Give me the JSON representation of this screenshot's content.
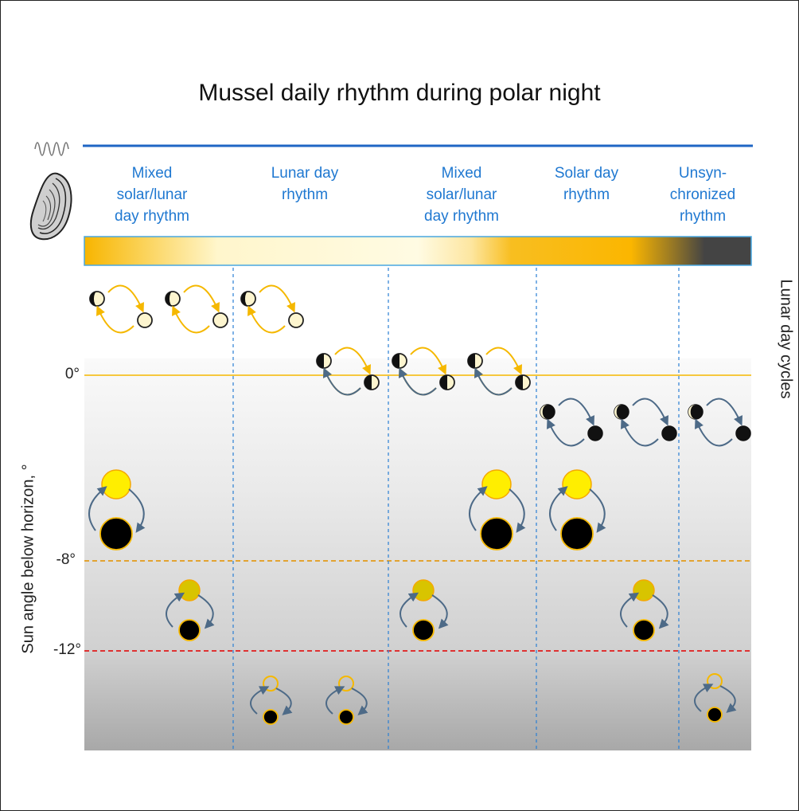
{
  "title": "Mussel daily rhythm during polar night",
  "phases": [
    "Mixed solar/lunar day rhythm",
    "Lunar day rhythm",
    "Mixed solar/lunar day rhythm",
    "Solar day rhythm",
    "Unsyn-chronized rhythm"
  ],
  "phase_lines": [
    [
      "Mixed",
      "solar/lunar",
      "day rhythm"
    ],
    [
      "Lunar day",
      "rhythm"
    ],
    [
      "Mixed",
      "solar/lunar",
      "day rhythm"
    ],
    [
      "Solar day",
      "rhythm"
    ],
    [
      "Unsyn-",
      "chronized",
      "rhythm"
    ]
  ],
  "sun_angle_labels": [
    "0°",
    "-8°",
    "-12°"
  ],
  "y_axis_label": "Sun angle below horizon, °",
  "right_axis_label": "Lunar day cycles",
  "colors": {
    "phase_text": "#1f78d1",
    "horizon_line": "#f5b800",
    "line_minus8": "#e39b1a",
    "line_minus12": "#e01b1b",
    "divider": "#2a7fd4",
    "arrow_gold": "#f5b800",
    "arrow_slate": "#4d6a87",
    "sun_bright": "#ffee00",
    "sun_dim": "#d8c400"
  },
  "icons": [
    "wave-icon",
    "mussel-icon",
    "moon-phase-icon",
    "sun-icon",
    "arrow-cycle-icon"
  ]
}
